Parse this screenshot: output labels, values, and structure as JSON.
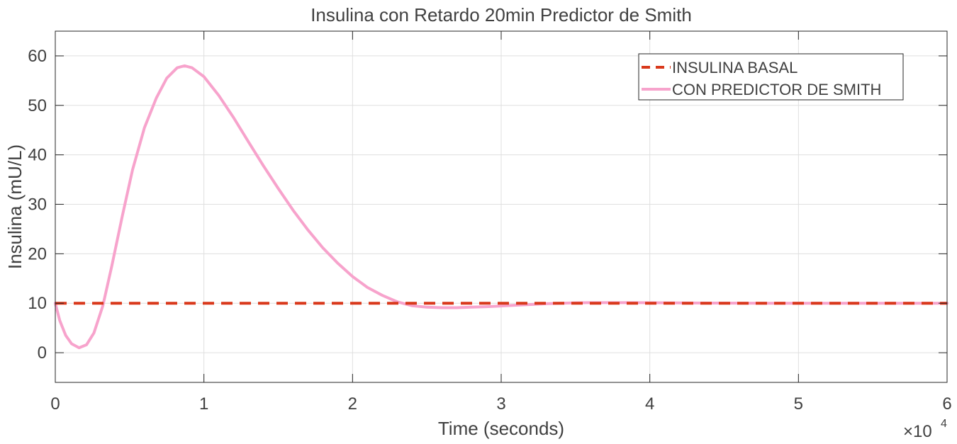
{
  "chart_data": {
    "type": "line",
    "title": "Insulina con Retardo 20min Predictor de Smith",
    "xlabel": "Time (seconds)",
    "ylabel": "Insulina (mU/L)",
    "x_exponent_label": "×10",
    "x_exponent_power": "4",
    "xlim": [
      0,
      60000
    ],
    "ylim": [
      -6,
      65
    ],
    "grid": true,
    "legend_position": "top-right",
    "x_ticks": [
      {
        "value": 0,
        "label": "0"
      },
      {
        "value": 10000,
        "label": "1"
      },
      {
        "value": 20000,
        "label": "2"
      },
      {
        "value": 30000,
        "label": "3"
      },
      {
        "value": 40000,
        "label": "4"
      },
      {
        "value": 50000,
        "label": "5"
      },
      {
        "value": 60000,
        "label": "6"
      }
    ],
    "y_ticks": [
      {
        "value": 0,
        "label": "0"
      },
      {
        "value": 10,
        "label": "10"
      },
      {
        "value": 20,
        "label": "20"
      },
      {
        "value": 30,
        "label": "30"
      },
      {
        "value": 40,
        "label": "40"
      },
      {
        "value": 50,
        "label": "50"
      },
      {
        "value": 60,
        "label": "60"
      }
    ],
    "series": [
      {
        "name": "INSULINA BASAL",
        "color": "#d9391c",
        "style": "dashed",
        "x": [
          0,
          60000
        ],
        "y": [
          10,
          10
        ]
      },
      {
        "name": "CON PREDICTOR DE SMITH",
        "color": "#f7a3cc",
        "style": "solid",
        "x": [
          0,
          300,
          700,
          1100,
          1600,
          2100,
          2600,
          3200,
          3800,
          4500,
          5200,
          6000,
          6800,
          7500,
          8200,
          8700,
          9200,
          10000,
          11000,
          12000,
          13000,
          14000,
          15000,
          16000,
          17000,
          18000,
          19000,
          20000,
          21000,
          22000,
          23000,
          24000,
          25000,
          26000,
          27000,
          28000,
          29000,
          30000,
          31000,
          32000,
          33000,
          34000,
          35000,
          36000,
          38000,
          40000,
          42000,
          44000,
          46000,
          48000,
          50000,
          52000,
          54000,
          56000,
          58000,
          60000
        ],
        "y": [
          10,
          6.5,
          3.5,
          1.8,
          1.0,
          1.6,
          4.0,
          9.5,
          17.5,
          27.5,
          37.0,
          45.5,
          51.5,
          55.5,
          57.6,
          58.0,
          57.6,
          55.8,
          52.0,
          47.5,
          42.6,
          37.8,
          33.2,
          28.8,
          24.8,
          21.2,
          18.1,
          15.4,
          13.2,
          11.6,
          10.3,
          9.5,
          9.2,
          9.1,
          9.1,
          9.2,
          9.3,
          9.45,
          9.6,
          9.75,
          9.9,
          10.0,
          10.08,
          10.12,
          10.13,
          10.1,
          10.07,
          10.04,
          10.02,
          10.0,
          10.0,
          10.0,
          10.0,
          10.0,
          10.0,
          10.0
        ]
      }
    ]
  }
}
